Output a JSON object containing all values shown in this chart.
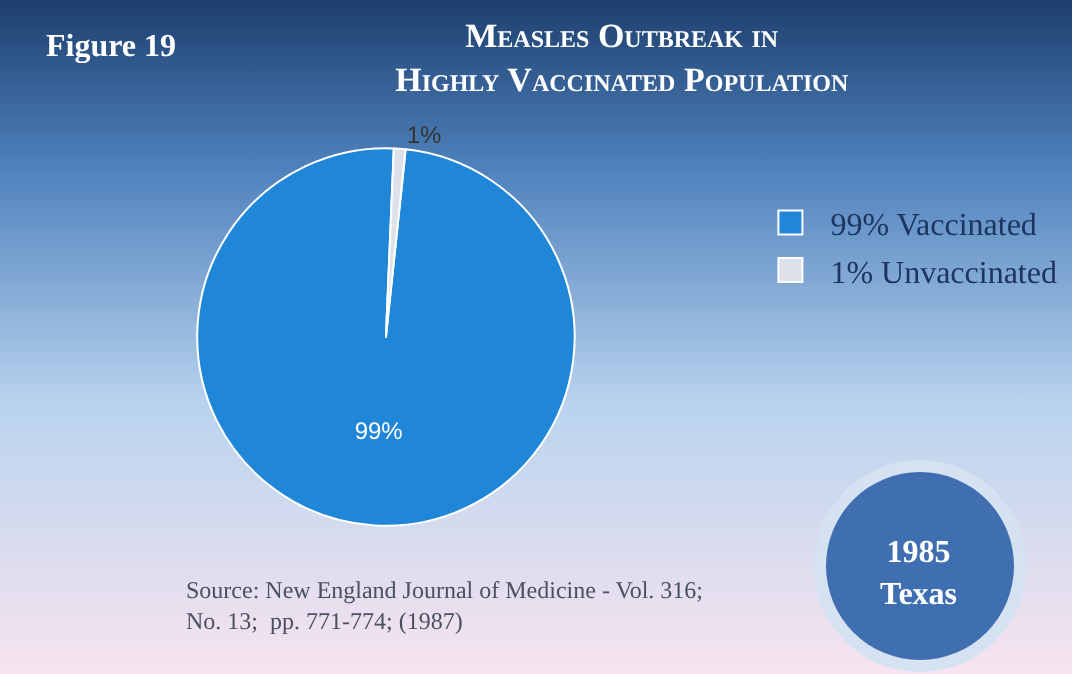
{
  "chart_data": {
    "type": "pie",
    "title": "Measles Outbreak in\nHighly Vaccinated Population",
    "categories": [
      "99% Vaccinated",
      "1% Unvaccinated"
    ],
    "values": [
      99,
      1
    ],
    "colors": [
      "#1f86d8",
      "#dde2ea"
    ],
    "value_labels": [
      "99%",
      "1%"
    ],
    "legend": "right",
    "annotations": [
      "Figure 19",
      "Source: New England Journal of Medicine - Vol. 316; No. 13;  pp. 771-774; (1987)",
      "1985 Texas"
    ]
  }
}
